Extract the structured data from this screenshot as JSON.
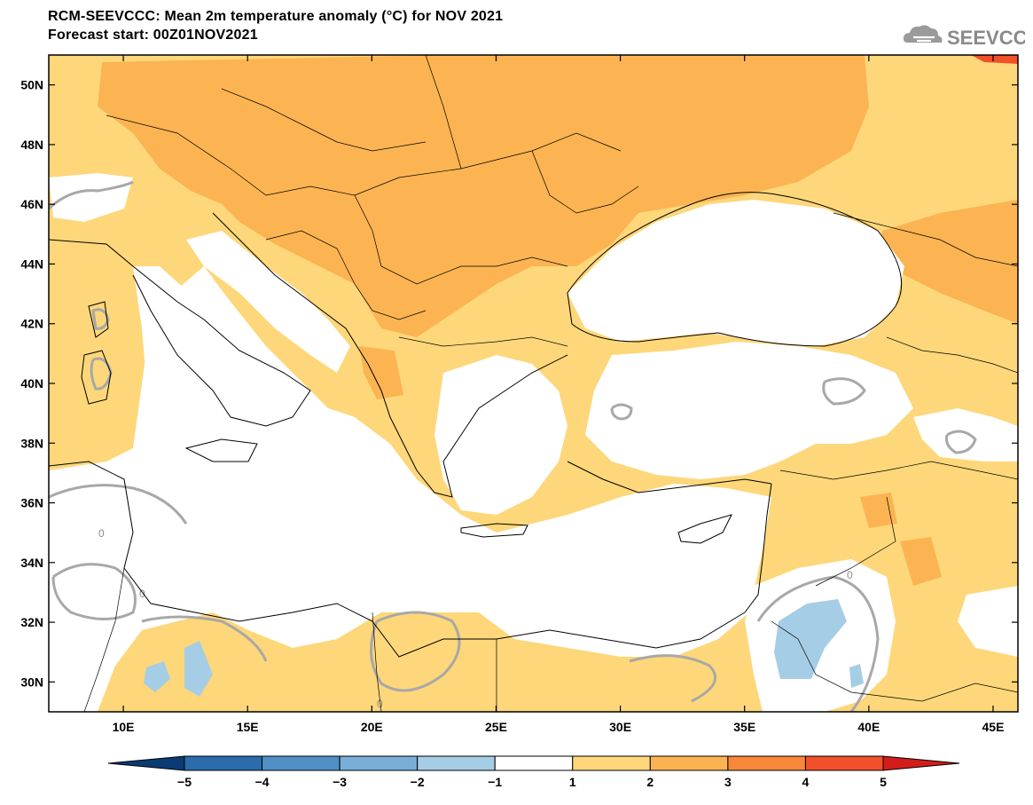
{
  "title": {
    "line1": "RCM-SEEVCCC: Mean 2m temperature anomaly (°C) for NOV 2021",
    "line2": "Forecast start: 00Z01NOV2021"
  },
  "logo": {
    "text": "SEEVCCC",
    "icon": "cloud-icon"
  },
  "axes": {
    "lat_labels": [
      "30N",
      "32N",
      "34N",
      "36N",
      "38N",
      "40N",
      "42N",
      "44N",
      "46N",
      "48N",
      "50N"
    ],
    "lat_values": [
      30,
      32,
      34,
      36,
      38,
      40,
      42,
      44,
      46,
      48,
      50
    ],
    "lon_labels": [
      "10E",
      "15E",
      "20E",
      "25E",
      "30E",
      "35E",
      "40E",
      "45E"
    ],
    "lon_values": [
      10,
      15,
      20,
      25,
      30,
      35,
      40,
      45
    ],
    "lon_range": [
      7,
      46
    ],
    "lat_range": [
      29,
      51
    ]
  },
  "colorbar": {
    "labels": [
      "−5",
      "−4",
      "−3",
      "−2",
      "−1",
      "1",
      "2",
      "3",
      "4",
      "5"
    ],
    "colors": [
      "#0c3a74",
      "#2a6cac",
      "#4f8fc6",
      "#79aed8",
      "#a6cde6",
      "#ffffff",
      "#fdd77a",
      "#fcb452",
      "#f9873a",
      "#f2502b",
      "#d21d1b"
    ]
  },
  "contour_label": "0",
  "colors": {
    "anom_1_2": "#fdd77a",
    "anom_2_3": "#fcb452",
    "anom_3_4": "#f9873a",
    "anom_4_5": "#f2502b",
    "anom_neg": "#a6cde6",
    "contour": "#a8a8a8"
  }
}
